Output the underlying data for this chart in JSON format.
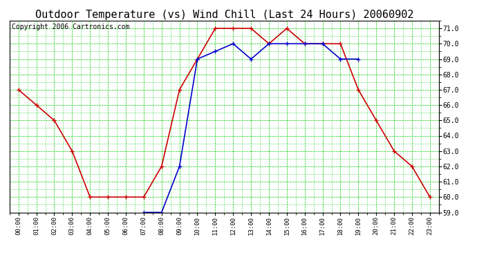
{
  "title": "Outdoor Temperature (vs) Wind Chill (Last 24 Hours) 20060902",
  "copyright": "Copyright 2006 Cartronics.com",
  "hours": [
    "00:00",
    "01:00",
    "02:00",
    "03:00",
    "04:00",
    "05:00",
    "06:00",
    "07:00",
    "08:00",
    "09:00",
    "10:00",
    "11:00",
    "12:00",
    "13:00",
    "14:00",
    "15:00",
    "16:00",
    "17:00",
    "18:00",
    "19:00",
    "20:00",
    "21:00",
    "22:00",
    "23:00"
  ],
  "temp": [
    67.0,
    66.0,
    65.0,
    63.0,
    60.0,
    60.0,
    60.0,
    60.0,
    62.0,
    67.0,
    69.0,
    71.0,
    71.0,
    71.0,
    70.0,
    71.0,
    70.0,
    70.0,
    70.0,
    67.0,
    65.0,
    63.0,
    62.0,
    60.0
  ],
  "wind_chill": [
    null,
    null,
    null,
    null,
    null,
    null,
    null,
    59.0,
    59.0,
    62.0,
    69.0,
    69.5,
    70.0,
    69.0,
    70.0,
    70.0,
    70.0,
    70.0,
    69.0,
    69.0,
    null,
    null,
    null,
    null
  ],
  "temp_color": "#cc0000",
  "wind_chill_color": "#0000cc",
  "grid_color": "#00cc00",
  "background_color": "#ffffff",
  "ylim": [
    59.0,
    71.5
  ],
  "yticks": [
    59.0,
    60.0,
    61.0,
    62.0,
    63.0,
    64.0,
    65.0,
    66.0,
    67.0,
    68.0,
    69.0,
    70.0,
    71.0
  ],
  "title_fontsize": 11,
  "copyright_fontsize": 7
}
